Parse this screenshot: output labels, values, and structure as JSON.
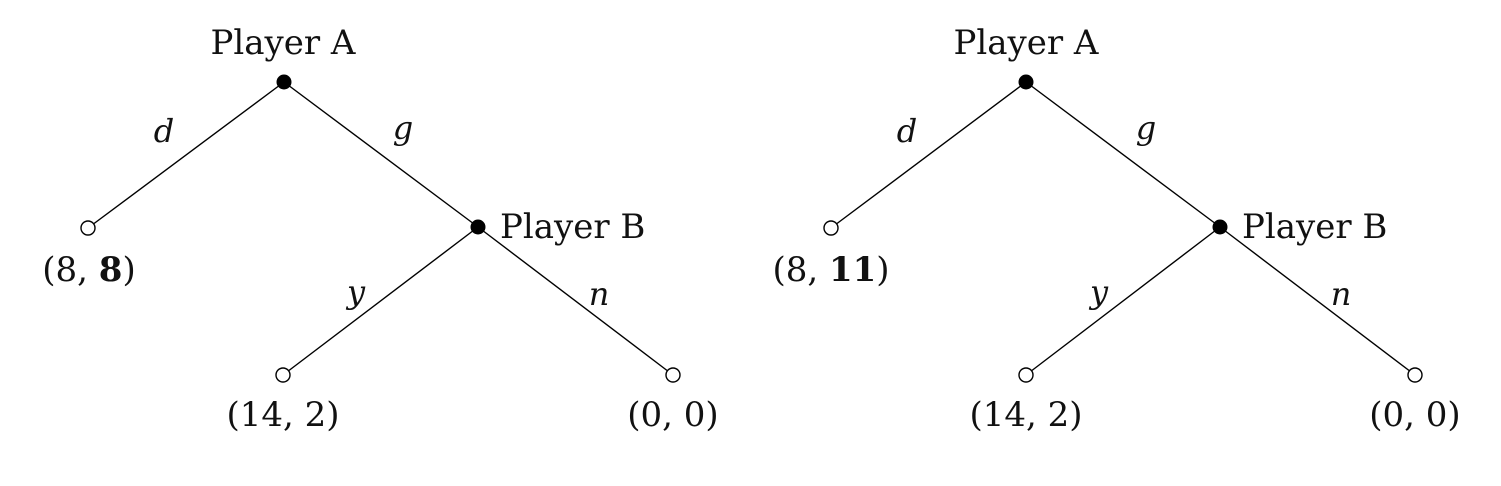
{
  "trees": [
    {
      "root_player": "Player A",
      "second_player": "Player B",
      "actions": {
        "root_left": "d",
        "root_right": "g",
        "b_left": "y",
        "b_right": "n"
      },
      "payoffs": {
        "d": {
          "open": "(",
          "a": "8",
          "sep": ", ",
          "b": "8",
          "close": ")"
        },
        "y": "(14, 2)",
        "n": "(0, 0)"
      }
    },
    {
      "root_player": "Player A",
      "second_player": "Player B",
      "actions": {
        "root_left": "d",
        "root_right": "g",
        "b_left": "y",
        "b_right": "n"
      },
      "payoffs": {
        "d": {
          "open": "(",
          "a": "8",
          "sep": ", ",
          "b": "11",
          "close": ")"
        },
        "y": "(14, 2)",
        "n": "(0, 0)"
      }
    }
  ],
  "colors": {
    "line": "#000000",
    "decision_node": "#000000",
    "terminal_node": "#ffffff"
  }
}
